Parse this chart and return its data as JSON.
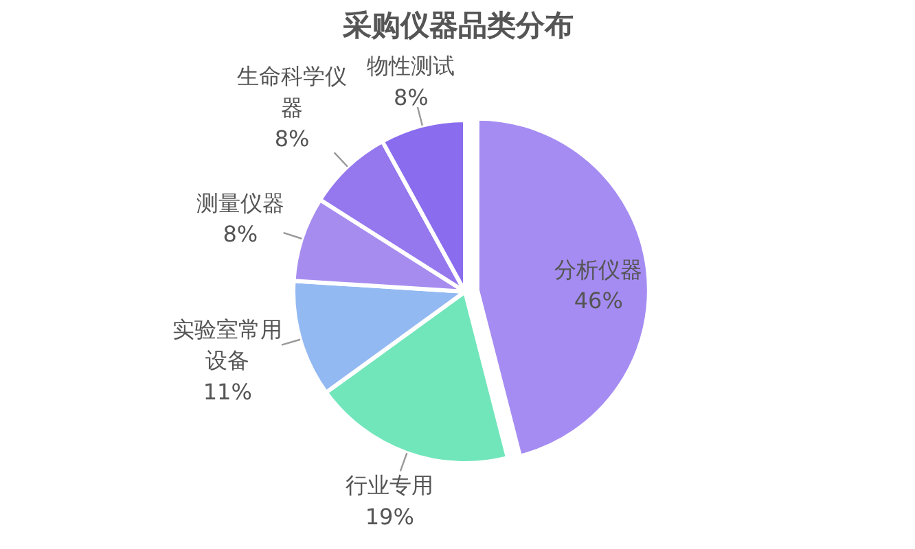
{
  "chart_data": {
    "type": "pie",
    "title": "采购仪器品类分布",
    "categories": [
      "分析仪器",
      "行业专用",
      "实验室常用设备",
      "测量仪器",
      "生命科学仪器",
      "物性测试"
    ],
    "values": [
      46,
      19,
      11,
      8,
      8,
      8
    ],
    "colors": [
      "#a58cf2",
      "#72e6bb",
      "#93b9f2",
      "#a78cf0",
      "#9577ee",
      "#8a6cee"
    ],
    "value_labels": [
      "46%",
      "19%",
      "11%",
      "8%",
      "8%",
      "8%"
    ]
  }
}
